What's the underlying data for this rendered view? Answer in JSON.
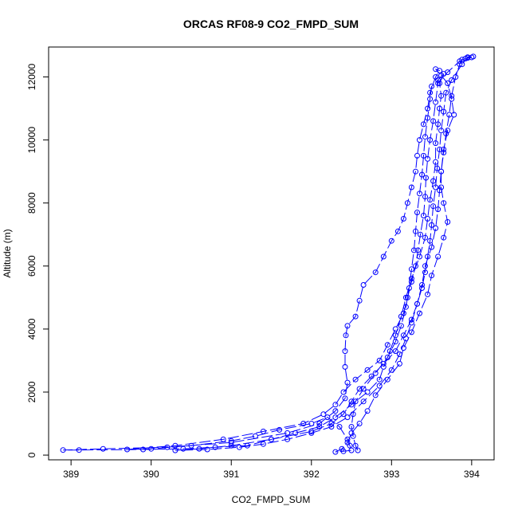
{
  "chart_data": {
    "type": "line",
    "title": "ORCAS RF08-9 CO2_FMPD_SUM",
    "xlabel": "CO2_FMPD_SUM",
    "ylabel": "Altitude (m)",
    "xlim": [
      388.72,
      394.28
    ],
    "ylim": [
      -150,
      12950
    ],
    "x_ticks": [
      389,
      390,
      391,
      392,
      393,
      394
    ],
    "y_ticks": [
      0,
      2000,
      4000,
      6000,
      8000,
      10000,
      12000
    ],
    "grid": false,
    "marker": "open-circle",
    "line_style": "long-dash",
    "series": [
      {
        "color": "#0000ff",
        "points": [
          [
            392.58,
            150
          ],
          [
            392.55,
            300
          ],
          [
            392.52,
            600
          ],
          [
            392.5,
            900
          ],
          [
            392.52,
            1300
          ],
          [
            392.55,
            1700
          ],
          [
            392.65,
            2100
          ],
          [
            392.8,
            2600
          ],
          [
            392.95,
            3100
          ],
          [
            393.05,
            3600
          ],
          [
            393.12,
            4100
          ],
          [
            393.18,
            4700
          ],
          [
            393.22,
            5300
          ],
          [
            393.25,
            5900
          ],
          [
            393.28,
            6500
          ],
          [
            393.3,
            7100
          ],
          [
            393.32,
            7700
          ],
          [
            393.35,
            8300
          ],
          [
            393.38,
            8900
          ],
          [
            393.4,
            9500
          ],
          [
            393.42,
            10100
          ],
          [
            393.45,
            10700
          ],
          [
            393.48,
            11300
          ],
          [
            393.5,
            11700
          ],
          [
            393.58,
            11900
          ],
          [
            393.65,
            12100
          ],
          [
            393.6,
            11800
          ],
          [
            393.62,
            11400
          ],
          [
            393.6,
            11000
          ],
          [
            393.58,
            10500
          ],
          [
            393.55,
            9900
          ],
          [
            393.55,
            9300
          ],
          [
            393.52,
            8700
          ],
          [
            393.48,
            8100
          ],
          [
            393.45,
            7500
          ],
          [
            393.42,
            6900
          ],
          [
            393.35,
            6300
          ],
          [
            393.25,
            5600
          ],
          [
            393.18,
            5000
          ],
          [
            393.12,
            4400
          ],
          [
            393.05,
            3800
          ],
          [
            392.98,
            3300
          ],
          [
            392.9,
            2800
          ],
          [
            392.85,
            2400
          ],
          [
            392.7,
            2000
          ],
          [
            392.5,
            1600
          ],
          [
            392.3,
            1200
          ],
          [
            392.1,
            900
          ],
          [
            391.8,
            700
          ],
          [
            391.5,
            500
          ],
          [
            391.2,
            300
          ],
          [
            390.8,
            250
          ],
          [
            390.4,
            200
          ],
          [
            389.9,
            180
          ],
          [
            389.1,
            160
          ],
          [
            388.9,
            160
          ],
          [
            389.4,
            200
          ],
          [
            390.2,
            250
          ],
          [
            391.0,
            400
          ],
          [
            391.7,
            700
          ],
          [
            392.1,
            1000
          ],
          [
            392.3,
            1400
          ],
          [
            392.42,
            1800
          ],
          [
            392.45,
            2300
          ],
          [
            392.42,
            2800
          ],
          [
            392.42,
            3300
          ],
          [
            392.43,
            3800
          ],
          [
            392.45,
            4100
          ],
          [
            392.55,
            4400
          ],
          [
            392.6,
            4900
          ],
          [
            392.65,
            5400
          ],
          [
            392.8,
            5800
          ],
          [
            392.9,
            6300
          ],
          [
            393.0,
            6800
          ],
          [
            393.08,
            7100
          ],
          [
            393.15,
            7500
          ],
          [
            393.2,
            8000
          ],
          [
            393.25,
            8500
          ],
          [
            393.3,
            9000
          ],
          [
            393.32,
            9500
          ],
          [
            393.35,
            10000
          ],
          [
            393.4,
            10500
          ],
          [
            393.45,
            11000
          ],
          [
            393.48,
            11500
          ],
          [
            393.55,
            12000
          ],
          [
            393.6,
            12200
          ],
          [
            393.55,
            12250
          ],
          [
            393.62,
            12050
          ],
          [
            393.7,
            11800
          ],
          [
            393.75,
            11300
          ],
          [
            393.78,
            10800
          ],
          [
            393.7,
            10300
          ],
          [
            393.65,
            9700
          ],
          [
            393.62,
            9000
          ],
          [
            393.62,
            8500
          ],
          [
            393.65,
            8000
          ],
          [
            393.7,
            7400
          ],
          [
            393.65,
            6900
          ],
          [
            393.58,
            6300
          ],
          [
            393.5,
            5700
          ],
          [
            393.45,
            5100
          ],
          [
            393.35,
            4500
          ],
          [
            393.25,
            3900
          ],
          [
            393.15,
            3400
          ],
          [
            393.1,
            2900
          ],
          [
            392.95,
            2400
          ],
          [
            392.8,
            1900
          ],
          [
            392.7,
            1400
          ],
          [
            392.6,
            1000
          ],
          [
            392.5,
            700
          ],
          [
            392.45,
            400
          ],
          [
            392.38,
            200
          ],
          [
            392.3,
            100
          ],
          [
            392.4,
            120
          ],
          [
            392.5,
            150
          ],
          [
            392.48,
            300
          ],
          [
            392.45,
            500
          ],
          [
            392.35,
            900
          ],
          [
            392.2,
            1200
          ],
          [
            392.0,
            1000
          ],
          [
            391.6,
            800
          ],
          [
            391.3,
            600
          ],
          [
            391.0,
            450
          ],
          [
            390.5,
            300
          ],
          [
            390.0,
            200
          ],
          [
            389.7,
            180
          ],
          [
            390.3,
            300
          ],
          [
            390.9,
            500
          ],
          [
            391.4,
            750
          ],
          [
            391.9,
            1000
          ],
          [
            392.15,
            1300
          ],
          [
            392.3,
            1600
          ],
          [
            392.4,
            2000
          ],
          [
            392.55,
            2400
          ],
          [
            392.7,
            2700
          ],
          [
            392.85,
            3000
          ],
          [
            392.95,
            3500
          ],
          [
            393.05,
            4000
          ],
          [
            393.15,
            4500
          ],
          [
            393.2,
            5000
          ],
          [
            393.25,
            5500
          ],
          [
            393.3,
            6000
          ],
          [
            393.33,
            6500
          ],
          [
            393.36,
            7000
          ],
          [
            393.4,
            7600
          ],
          [
            393.42,
            8200
          ],
          [
            393.43,
            8800
          ],
          [
            393.45,
            9400
          ],
          [
            393.48,
            10000
          ],
          [
            393.52,
            10600
          ],
          [
            393.55,
            11200
          ],
          [
            393.58,
            11800
          ],
          [
            393.7,
            12150
          ],
          [
            393.85,
            12500
          ],
          [
            393.92,
            12580
          ],
          [
            394.0,
            12620
          ],
          [
            393.95,
            12600
          ],
          [
            393.88,
            12550
          ],
          [
            393.85,
            12400
          ],
          [
            393.8,
            12000
          ],
          [
            393.75,
            11400
          ],
          [
            393.72,
            10800
          ],
          [
            393.68,
            10200
          ],
          [
            393.65,
            9600
          ],
          [
            393.62,
            9000
          ],
          [
            393.6,
            8400
          ],
          [
            393.58,
            7800
          ],
          [
            393.55,
            7200
          ],
          [
            393.5,
            6600
          ],
          [
            393.42,
            6000
          ],
          [
            393.38,
            5400
          ],
          [
            393.32,
            4800
          ],
          [
            393.25,
            4200
          ],
          [
            393.18,
            3700
          ],
          [
            393.1,
            3200
          ],
          [
            393.0,
            2700
          ],
          [
            392.85,
            2200
          ],
          [
            392.65,
            1700
          ],
          [
            392.45,
            1200
          ],
          [
            392.25,
            900
          ],
          [
            392.0,
            700
          ],
          [
            391.7,
            500
          ],
          [
            391.4,
            350
          ],
          [
            391.1,
            250
          ],
          [
            390.7,
            180
          ],
          [
            390.3,
            150
          ],
          [
            390.6,
            200
          ],
          [
            391.0,
            300
          ],
          [
            391.5,
            500
          ],
          [
            392.0,
            750
          ],
          [
            392.25,
            1000
          ],
          [
            392.4,
            1300
          ],
          [
            392.5,
            1700
          ],
          [
            392.6,
            2100
          ],
          [
            392.75,
            2500
          ],
          [
            392.9,
            2900
          ],
          [
            393.05,
            3300
          ],
          [
            393.15,
            3800
          ],
          [
            393.25,
            4300
          ],
          [
            393.32,
            4800
          ],
          [
            393.38,
            5300
          ],
          [
            393.42,
            5800
          ],
          [
            393.45,
            6300
          ],
          [
            393.48,
            6800
          ],
          [
            393.5,
            7300
          ],
          [
            393.52,
            7900
          ],
          [
            393.55,
            8500
          ],
          [
            393.57,
            9100
          ],
          [
            393.6,
            9700
          ],
          [
            393.62,
            10300
          ],
          [
            393.65,
            10900
          ],
          [
            393.68,
            11500
          ],
          [
            393.75,
            11900
          ],
          [
            393.88,
            12400
          ],
          [
            393.95,
            12630
          ],
          [
            394.02,
            12650
          ]
        ]
      }
    ]
  }
}
